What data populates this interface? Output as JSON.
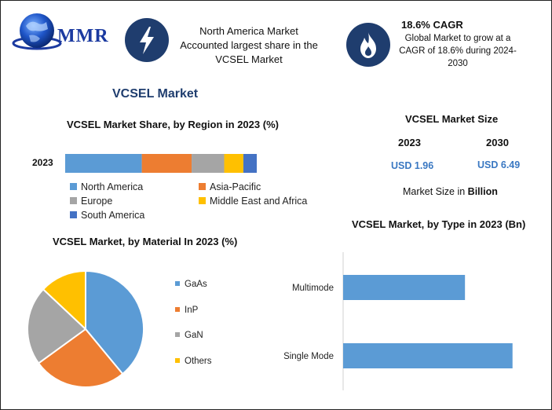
{
  "brand": {
    "logo_text": "MMR"
  },
  "highlights": [
    {
      "icon": "lightning-bolt-icon",
      "lines": [
        "North America Market",
        "Accounted largest share in the",
        "VCSEL Market"
      ]
    },
    {
      "icon": "flame-icon",
      "title": "18.6% CAGR",
      "lines": [
        "Global Market to grow at a",
        "CAGR of 18.6% during 2024-",
        "2030"
      ]
    }
  ],
  "main_title": "VCSEL Market",
  "colors": {
    "north_america": "#5b9bd5",
    "asia_pacific": "#ed7d31",
    "europe": "#a5a5a5",
    "middle_east_africa": "#ffc000",
    "south_america": "#4472c4",
    "icon_bg": "#1f3d6e",
    "value_blue": "#3a78c2"
  },
  "market_size": {
    "title": "VCSEL Market Size",
    "years": [
      "2023",
      "2030"
    ],
    "values": [
      "USD 1.96",
      "USD 6.49"
    ],
    "unit_prefix": "Market Size in ",
    "unit_bold": "Billion"
  },
  "chart_data": [
    {
      "type": "bar",
      "orientation": "horizontal-stacked",
      "title": "VCSEL Market Share, by Region in 2023 (%)",
      "categories": [
        "2023"
      ],
      "series": [
        {
          "name": "North America",
          "values": [
            40
          ]
        },
        {
          "name": "Asia-Pacific",
          "values": [
            26
          ]
        },
        {
          "name": "Europe",
          "values": [
            17
          ]
        },
        {
          "name": "Middle East and Africa",
          "values": [
            10
          ]
        },
        {
          "name": "South America",
          "values": [
            7
          ]
        }
      ],
      "legend": "bottom"
    },
    {
      "type": "pie",
      "title": "VCSEL Market, by Material In 2023 (%)",
      "labels": [
        "GaAs",
        "InP",
        "GaN",
        "Others"
      ],
      "values": [
        39,
        26,
        22,
        13
      ],
      "legend": "right"
    },
    {
      "type": "bar",
      "orientation": "horizontal",
      "title": "VCSEL Market, by Type in 2023 (Bn)",
      "categories": [
        "Multimode",
        "Single Mode"
      ],
      "values": [
        0.82,
        1.14
      ],
      "xlim": [
        0,
        1.3
      ]
    }
  ]
}
